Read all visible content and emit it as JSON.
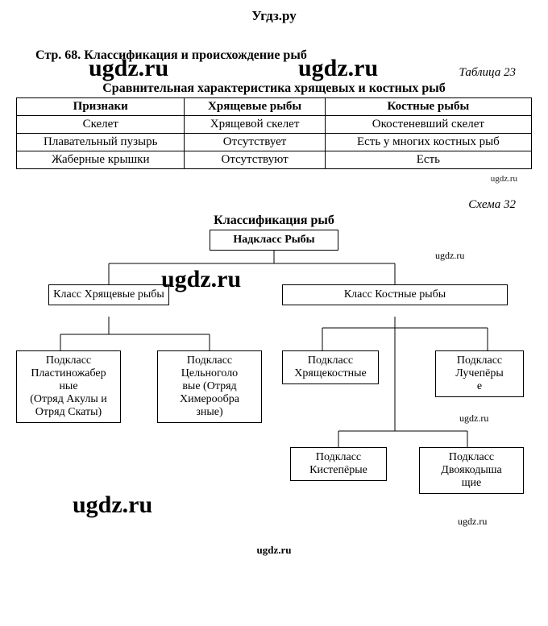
{
  "site_header": "Угдз.ру",
  "watermark_large": "ugdz.ru",
  "watermark_small": "ugdz.ru",
  "page_line": "Стр. 68. Классификация и происхождение рыб",
  "table_caption": "Таблица 23",
  "table_title": "Сравнительная характеристика хрящевых и костных рыб",
  "table": {
    "headers": [
      "Признаки",
      "Хрящевые рыбы",
      "Костные рыбы"
    ],
    "rows": [
      [
        "Скелет",
        "Хрящевой скелет",
        "Окостеневший скелет"
      ],
      [
        "Плавательный пузырь",
        "Отсутствует",
        "Есть у многих костных рыб"
      ],
      [
        "Жаберные крышки",
        "Отсутствуют",
        "Есть"
      ]
    ]
  },
  "scheme_caption": "Схема 32",
  "chart_title": "Классификация рыб",
  "chart": {
    "root": "Надкласс Рыбы",
    "class1": "Класс Хрящевые рыбы",
    "class2": "Класс Костные рыбы",
    "sub1": "Подкласс Пластиножабер\nные\n(Отряд Акулы и Отряд Скаты)",
    "sub2": "Подкласс Цельноголо\nвые (Отряд Химерообра\nзные)",
    "sub3": "Подкласс Хрящекостные",
    "sub4": "Подкласс Лучепёры\nе",
    "sub5": "Подкласс Кистепёрые",
    "sub6": "Подкласс Двоякодыша\nщие"
  },
  "footer": "ugdz.ru"
}
